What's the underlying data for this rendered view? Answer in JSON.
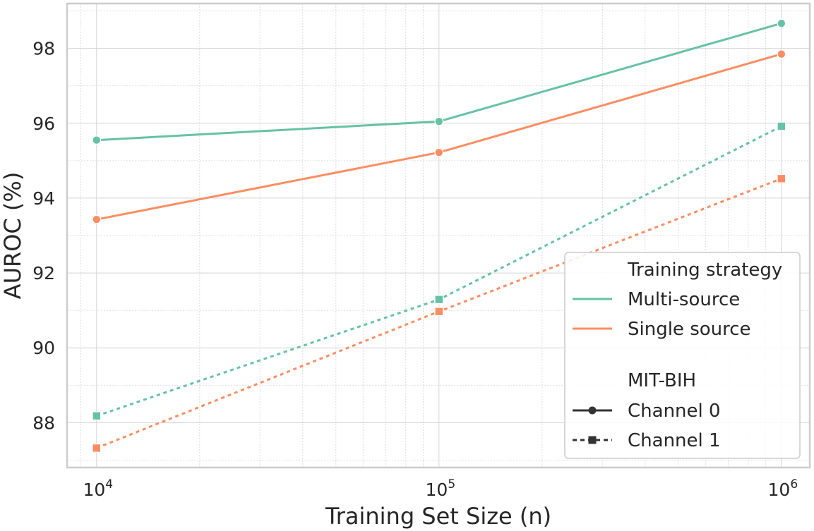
{
  "chart_data": {
    "type": "line",
    "xscale": "log",
    "xlabel": "Training Set Size (n)",
    "ylabel": "AUROC (%)",
    "xlim": [
      8200,
      1210000
    ],
    "ylim": [
      86.8,
      99.2
    ],
    "grid": true,
    "x_ticks": [
      {
        "base": "10",
        "exp": "4",
        "value": 10000
      },
      {
        "base": "10",
        "exp": "5",
        "value": 100000
      },
      {
        "base": "10",
        "exp": "6",
        "value": 1000000
      }
    ],
    "y_ticks": [
      88,
      90,
      92,
      94,
      96,
      98
    ],
    "colors": {
      "multi_source": "#66c2a5",
      "single_source": "#fc8d62",
      "legend_dark": "#333333",
      "grid": "#d4d4d4",
      "spine": "#cccccc"
    },
    "series": [
      {
        "name": "Multi-source Channel 0",
        "strategy": "Multi-source",
        "channel": "Channel 0",
        "marker": "circle",
        "dashed": false,
        "color": "#66c2a5",
        "x": [
          10000,
          100000,
          1000000
        ],
        "y": [
          95.55,
          96.05,
          98.67
        ]
      },
      {
        "name": "Single source Channel 0",
        "strategy": "Single source",
        "channel": "Channel 0",
        "marker": "circle",
        "dashed": false,
        "color": "#fc8d62",
        "x": [
          10000,
          100000,
          1000000
        ],
        "y": [
          93.43,
          95.22,
          97.85
        ]
      },
      {
        "name": "Multi-source Channel 1",
        "strategy": "Multi-source",
        "channel": "Channel 1",
        "marker": "square",
        "dashed": true,
        "color": "#66c2a5",
        "x": [
          10000,
          100000,
          1000000
        ],
        "y": [
          88.18,
          91.29,
          95.92
        ]
      },
      {
        "name": "Single source Channel 1",
        "strategy": "Single source",
        "channel": "Channel 1",
        "marker": "square",
        "dashed": true,
        "color": "#fc8d62",
        "x": [
          10000,
          100000,
          1000000
        ],
        "y": [
          87.32,
          90.97,
          94.52
        ]
      }
    ],
    "legend": {
      "location": "lower-right",
      "hue_title": "Training strategy",
      "hue_entries": [
        "Multi-source",
        "Single source"
      ],
      "style_title": "MIT-BIH",
      "style_entries": [
        "Channel 0",
        "Channel 1"
      ]
    }
  }
}
